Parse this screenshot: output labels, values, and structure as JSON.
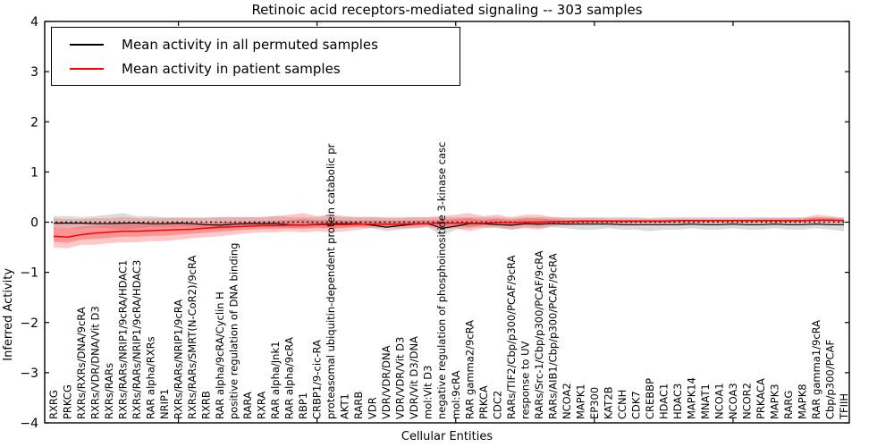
{
  "title": "Retinoic acid receptors-mediated signaling -- 303 samples",
  "xlabel": "Cellular Entities",
  "ylabel": "Inferred Activity",
  "legend": {
    "items": [
      {
        "label": "Mean activity in all permuted samples",
        "color": "#000000"
      },
      {
        "label": "Mean activity in patient samples",
        "color": "#ff0000"
      }
    ]
  },
  "chart_data": {
    "type": "line",
    "title": "Retinoic acid receptors-mediated signaling -- 303 samples",
    "xlabel": "Cellular Entities",
    "ylabel": "Inferred Activity",
    "ylim": [
      -4,
      4
    ],
    "yticks": [
      -4,
      -3,
      -2,
      -1,
      0,
      1,
      2,
      3,
      4
    ],
    "xtick_marks_at_indices": [
      9,
      19,
      29,
      39,
      49
    ],
    "grid": false,
    "legend_position": "upper left",
    "zero_line": {
      "style": "dotted",
      "color": "#000000",
      "y": 0
    },
    "colors": {
      "permuted_line": "#000000",
      "patient_line": "#ff0000",
      "permuted_band": "#999999",
      "patient_band": "#ff5555",
      "patient_band_inner": "#ee2222"
    },
    "categories": [
      "RXRG",
      "PRKCG",
      "RXRs/RXRs/DNA/9cRA",
      "RXRs/VDR/DNA/Vit D3",
      "RXRs/RARs",
      "RXRs/RARs/NRIP1/9cRA/HDAC1",
      "RXRs/RARs/NRIP1/9cRA/HDAC3",
      "RAR alpha/RXRs",
      "NRIP1",
      "RXRs/RARs/NRIP1/9cRA",
      "RXRs/RARs/SMRT(N-CoR2)/9cRA",
      "RXRB",
      "RAR alpha/9cRA/Cyclin H",
      "positive regulation of DNA binding",
      "RARA",
      "RXRA",
      "RAR alpha/Jnk1",
      "RAR alpha/9cRA",
      "RBP1",
      "CRBP1/9-cic-RA",
      "proteasomal ubiquitin-dependent protein catabolic pr",
      "AKT1",
      "RARB",
      "VDR",
      "VDR/VDR/DNA",
      "VDR/VDR/Vit D3",
      "VDR/Vit D3/DNA",
      "mol:Vit D3",
      "negative regulation of phosphoinositide 3-kinase casc",
      "mol:9cRA",
      "RAR gamma2/9cRA",
      "PRKCA",
      "CDC2",
      "RARs/TIF2/Cbp/p300/PCAF/9cRA",
      "response to UV",
      "RARs/Src-1/Cbp/p300/PCAF/9cRA",
      "RARs/AIB1/Cbp/p300/PCAF/9cRA",
      "NCOA2",
      "MAPK1",
      "EP300",
      "KAT2B",
      "CCNH",
      "CDK7",
      "CREBBP",
      "HDAC1",
      "HDAC3",
      "MAPK14",
      "MNAT1",
      "NCOA1",
      "NCOA3",
      "NCOR2",
      "PRKACA",
      "MAPK3",
      "RARG",
      "MAPK8",
      "RAR gamma1/9cRA",
      "Cbp/p300/PCAF",
      "TFIIH"
    ],
    "series": [
      {
        "name": "Mean activity in all permuted samples",
        "color": "#000000",
        "values": [
          -0.02,
          -0.02,
          -0.02,
          -0.03,
          -0.03,
          -0.02,
          -0.02,
          -0.03,
          -0.03,
          -0.02,
          -0.03,
          -0.05,
          -0.06,
          -0.04,
          -0.03,
          -0.03,
          -0.03,
          -0.05,
          -0.06,
          -0.04,
          -0.03,
          -0.03,
          -0.03,
          -0.06,
          -0.1,
          -0.07,
          -0.04,
          -0.03,
          -0.12,
          -0.08,
          -0.03,
          -0.03,
          -0.05,
          -0.06,
          -0.03,
          -0.04,
          -0.03,
          -0.04,
          -0.04,
          -0.04,
          -0.04,
          -0.05,
          -0.05,
          -0.05,
          -0.05,
          -0.05,
          -0.04,
          -0.05,
          -0.05,
          -0.04,
          -0.05,
          -0.05,
          -0.04,
          -0.05,
          -0.05,
          -0.04,
          -0.05,
          -0.05
        ]
      },
      {
        "name": "Mean activity in patient samples",
        "color": "#ff0000",
        "values": [
          -0.28,
          -0.3,
          -0.25,
          -0.22,
          -0.2,
          -0.18,
          -0.18,
          -0.17,
          -0.16,
          -0.15,
          -0.14,
          -0.12,
          -0.1,
          -0.09,
          -0.08,
          -0.07,
          -0.07,
          -0.06,
          -0.06,
          -0.05,
          -0.05,
          -0.05,
          -0.04,
          -0.04,
          -0.04,
          -0.04,
          -0.03,
          -0.03,
          -0.02,
          -0.02,
          -0.02,
          -0.02,
          -0.01,
          -0.01,
          0.0,
          0.0,
          0.01,
          0.01,
          0.02,
          0.02,
          0.02,
          0.02,
          0.02,
          0.02,
          0.02,
          0.03,
          0.03,
          0.03,
          0.03,
          0.03,
          0.03,
          0.03,
          0.03,
          0.03,
          0.03,
          0.04,
          0.04,
          0.03
        ]
      }
    ],
    "bands": [
      {
        "name": "permuted-sample-range",
        "lo": [
          -0.1,
          -0.12,
          -0.12,
          -0.1,
          -0.12,
          -0.15,
          -0.12,
          -0.1,
          -0.1,
          -0.1,
          -0.1,
          -0.12,
          -0.15,
          -0.12,
          -0.1,
          -0.1,
          -0.1,
          -0.12,
          -0.12,
          -0.1,
          -0.12,
          -0.1,
          -0.1,
          -0.12,
          -0.18,
          -0.15,
          -0.12,
          -0.1,
          -0.27,
          -0.15,
          -0.12,
          -0.1,
          -0.12,
          -0.15,
          -0.1,
          -0.12,
          -0.1,
          -0.12,
          -0.15,
          -0.15,
          -0.12,
          -0.15,
          -0.15,
          -0.18,
          -0.15,
          -0.15,
          -0.12,
          -0.15,
          -0.15,
          -0.12,
          -0.15,
          -0.15,
          -0.12,
          -0.15,
          -0.15,
          -0.12,
          -0.15,
          -0.18
        ],
        "hi": [
          0.12,
          0.12,
          0.1,
          0.12,
          0.15,
          0.18,
          0.12,
          0.12,
          0.1,
          0.1,
          0.1,
          0.1,
          0.1,
          0.1,
          0.1,
          0.1,
          0.12,
          0.1,
          0.1,
          0.1,
          0.12,
          0.1,
          0.1,
          0.1,
          0.08,
          0.08,
          0.1,
          0.1,
          0.1,
          0.1,
          0.1,
          0.1,
          0.1,
          0.08,
          0.1,
          0.1,
          0.1,
          0.1,
          0.1,
          0.1,
          0.1,
          0.1,
          0.1,
          0.08,
          0.1,
          0.1,
          0.1,
          0.1,
          0.1,
          0.1,
          0.1,
          0.1,
          0.1,
          0.1,
          0.1,
          0.1,
          0.1,
          0.1
        ]
      },
      {
        "name": "patient-sample-range",
        "lo": [
          -0.5,
          -0.52,
          -0.45,
          -0.45,
          -0.42,
          -0.4,
          -0.4,
          -0.38,
          -0.38,
          -0.35,
          -0.32,
          -0.3,
          -0.28,
          -0.25,
          -0.22,
          -0.2,
          -0.2,
          -0.18,
          -0.2,
          -0.18,
          -0.2,
          -0.18,
          -0.15,
          -0.12,
          -0.12,
          -0.12,
          -0.12,
          -0.1,
          -0.15,
          -0.12,
          -0.18,
          -0.12,
          -0.1,
          -0.15,
          -0.12,
          -0.15,
          -0.08,
          -0.06,
          -0.05,
          -0.04,
          -0.04,
          -0.04,
          -0.03,
          -0.03,
          -0.03,
          -0.03,
          -0.02,
          -0.02,
          -0.02,
          -0.02,
          -0.02,
          -0.02,
          -0.02,
          -0.02,
          -0.02,
          -0.02,
          -0.02,
          -0.02
        ],
        "hi": [
          0.08,
          0.06,
          0.06,
          0.08,
          0.08,
          0.1,
          0.08,
          0.08,
          0.08,
          0.08,
          0.08,
          0.08,
          0.1,
          0.1,
          0.1,
          0.1,
          0.12,
          0.15,
          0.18,
          0.12,
          0.15,
          0.12,
          0.1,
          0.1,
          0.1,
          0.1,
          0.1,
          0.1,
          0.12,
          0.15,
          0.18,
          0.12,
          0.15,
          0.1,
          0.15,
          0.15,
          0.1,
          0.08,
          0.08,
          0.08,
          0.07,
          0.07,
          0.07,
          0.07,
          0.07,
          0.07,
          0.07,
          0.07,
          0.07,
          0.07,
          0.07,
          0.08,
          0.08,
          0.08,
          0.08,
          0.15,
          0.12,
          0.08
        ]
      }
    ]
  }
}
